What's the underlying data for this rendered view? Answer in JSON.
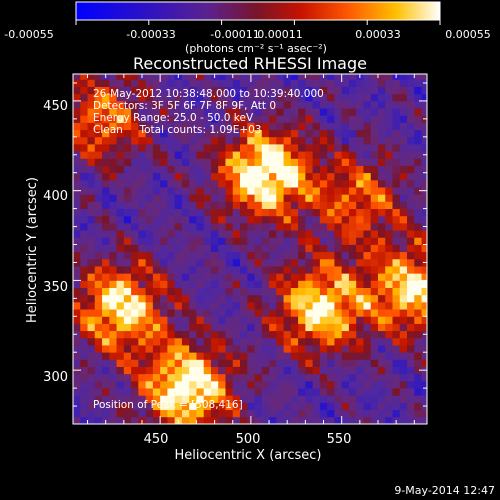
{
  "colorbar": {
    "ticks": [
      "-0.00055",
      "-0.00033",
      "-0.00011",
      "0.00011",
      "0.00033",
      "0.00055"
    ],
    "unit_label": "(photons cm⁻² s⁻¹ asec⁻²)",
    "range": [
      -0.00055,
      0.00055
    ]
  },
  "chart_data": {
    "type": "heatmap",
    "title": "Reconstructed RHESSI Image",
    "xlabel": "Heliocentric X (arcsec)",
    "ylabel": "Heliocentric Y (arcsec)",
    "xlim": [
      402,
      597
    ],
    "ylim": [
      270,
      465
    ],
    "x_ticks": [
      450,
      500,
      550
    ],
    "y_ticks": [
      300,
      350,
      400,
      450
    ],
    "colormap": "blue-purple-red-orange-yellow-white",
    "peak_position": [
      508,
      416
    ],
    "bright_sources": [
      {
        "x": 508,
        "y": 410,
        "level": 1.0
      },
      {
        "x": 428,
        "y": 335,
        "level": 0.85
      },
      {
        "x": 465,
        "y": 290,
        "level": 0.95
      },
      {
        "x": 538,
        "y": 335,
        "level": 0.85
      },
      {
        "x": 590,
        "y": 345,
        "level": 0.8
      },
      {
        "x": 560,
        "y": 395,
        "level": 0.55
      },
      {
        "x": 418,
        "y": 440,
        "level": 0.6
      }
    ],
    "info_lines": [
      "26-May-2012 10:38:48.000 to 10:39:40.000",
      "Detectors: 3F 5F 6F 7F 8F 9F, Att 0",
      "Energy Range: 25.0 - 50.0 keV",
      "Clean     Total counts: 1.09E+03"
    ],
    "peak_label": "Position of Peak = [508,416]"
  },
  "footer": {
    "date": "9-May-2014 12:47"
  }
}
